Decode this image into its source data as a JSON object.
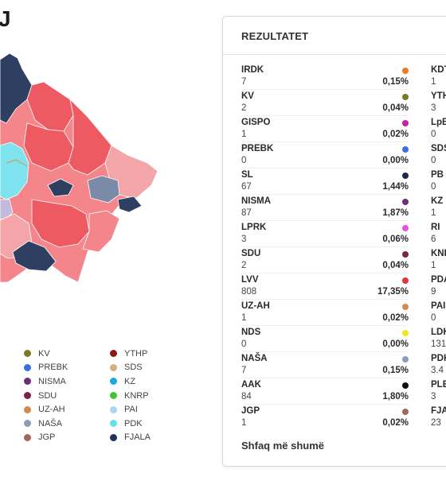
{
  "page": {
    "heading": "J"
  },
  "legend": {
    "col1": [
      {
        "label": "KV",
        "color": "#7a7a1e"
      },
      {
        "label": "PREBK",
        "color": "#3a6fe0"
      },
      {
        "label": "NISMA",
        "color": "#6a2f7a"
      },
      {
        "label": "SDU",
        "color": "#7a2443"
      },
      {
        "label": "UZ-AH",
        "color": "#d38b4b"
      },
      {
        "label": "NAŠA",
        "color": "#8d9bb8"
      },
      {
        "label": "JGP",
        "color": "#a0685b"
      }
    ],
    "col2": [
      {
        "label": "YTHP",
        "color": "#8b1a1a"
      },
      {
        "label": "SDS",
        "color": "#d6b07a"
      },
      {
        "label": "KZ",
        "color": "#1fa7e0"
      },
      {
        "label": "KNRP",
        "color": "#42c431"
      },
      {
        "label": "PAI",
        "color": "#a9d7f0"
      },
      {
        "label": "PDK",
        "color": "#62e1f2"
      },
      {
        "label": "FJALA",
        "color": "#20315b"
      }
    ]
  },
  "results": {
    "title": "REZULTATET",
    "show_more": "Shfaq më shumë",
    "left": [
      {
        "name": "IRDK",
        "votes": "7",
        "pct": "0,15%",
        "color": "#f07a22"
      },
      {
        "name": "KV",
        "votes": "2",
        "pct": "0,04%",
        "color": "#7a7a1e"
      },
      {
        "name": "GISPO",
        "votes": "1",
        "pct": "0,02%",
        "color": "#c2259a"
      },
      {
        "name": "PREBK",
        "votes": "0",
        "pct": "0,00%",
        "color": "#3a6fe0"
      },
      {
        "name": "SL",
        "votes": "67",
        "pct": "1,44%",
        "color": "#1a2a4a"
      },
      {
        "name": "NISMA",
        "votes": "87",
        "pct": "1,87%",
        "color": "#6a2f7a"
      },
      {
        "name": "LPRK",
        "votes": "3",
        "pct": "0,06%",
        "color": "#e752e0"
      },
      {
        "name": "SDU",
        "votes": "2",
        "pct": "0,04%",
        "color": "#7a2443"
      },
      {
        "name": "LVV",
        "votes": "808",
        "pct": "17,35%",
        "color": "#e8353b"
      },
      {
        "name": "UZ-AH",
        "votes": "1",
        "pct": "0,02%",
        "color": "#d38b4b"
      },
      {
        "name": "NDS",
        "votes": "0",
        "pct": "0,00%",
        "color": "#f4e51d"
      },
      {
        "name": "NAŠA",
        "votes": "7",
        "pct": "0,15%",
        "color": "#8d9bb8"
      },
      {
        "name": "AAK",
        "votes": "84",
        "pct": "1,80%",
        "color": "#111111"
      },
      {
        "name": "JGP",
        "votes": "1",
        "pct": "0,02%",
        "color": "#a0685b"
      }
    ],
    "right": [
      {
        "name": "KDT",
        "votes": "1"
      },
      {
        "name": "YTH",
        "votes": "3"
      },
      {
        "name": "LpB",
        "votes": "0"
      },
      {
        "name": "SDS",
        "votes": "0"
      },
      {
        "name": "PB",
        "votes": "0"
      },
      {
        "name": "KZ",
        "votes": "1"
      },
      {
        "name": "RI",
        "votes": "6"
      },
      {
        "name": "KNF",
        "votes": "1"
      },
      {
        "name": "PDA",
        "votes": "9"
      },
      {
        "name": "PAI",
        "votes": "0"
      },
      {
        "name": "LDK",
        "votes": "131"
      },
      {
        "name": "PDK",
        "votes": "3.4"
      },
      {
        "name": "PLE",
        "votes": "3"
      },
      {
        "name": "FJA",
        "votes": "23"
      }
    ]
  },
  "map_colors": {
    "lvv": "#ee5a62",
    "lvv_light": "#f4868b",
    "lvv_pale": "#f3a5a8",
    "fjala_dark": "#2e3f62",
    "slate": "#7b8aa6",
    "pdk_cyan": "#7fe3ef",
    "lavender": "#c3b9d8"
  }
}
